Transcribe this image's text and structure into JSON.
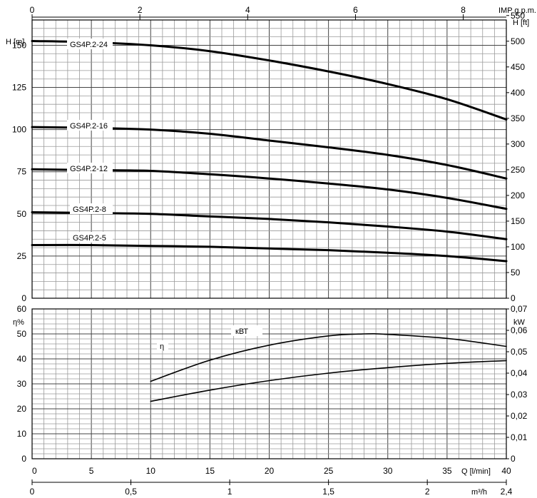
{
  "chart_data": [
    {
      "type": "line",
      "title": "",
      "labels": {
        "h_m": "H [m]",
        "h_ft": "H [ft]",
        "imp": "IMP g.p.m."
      },
      "ylim": [
        0,
        165
      ],
      "yticks_m": [
        "0",
        "25",
        "50",
        "75",
        "100",
        "125",
        "150"
      ],
      "yticks_ft": [
        "0",
        "50",
        "100",
        "150",
        "200",
        "250",
        "300",
        "350",
        "400",
        "450",
        "500",
        "550"
      ],
      "imp_ticks": [
        "0",
        "2",
        "4",
        "6",
        "8"
      ],
      "series": [
        {
          "name": "GS4P.2-24",
          "x": [
            0,
            5,
            10,
            15,
            20,
            25,
            30,
            35,
            40
          ],
          "y": [
            152.5,
            151.8,
            150,
            146.5,
            141,
            134.5,
            127,
            118,
            106
          ]
        },
        {
          "name": "GS4P.2-16",
          "x": [
            0,
            5,
            10,
            15,
            20,
            25,
            30,
            35,
            40
          ],
          "y": [
            101.5,
            101,
            100,
            97.5,
            93.5,
            89.5,
            85,
            79,
            71
          ]
        },
        {
          "name": "GS4P.2-12",
          "x": [
            0,
            5,
            10,
            15,
            20,
            25,
            30,
            35,
            40
          ],
          "y": [
            76.5,
            76,
            75.5,
            73.5,
            71,
            68,
            64.5,
            59.5,
            53
          ]
        },
        {
          "name": "GS4P.2-8",
          "x": [
            0,
            5,
            10,
            15,
            20,
            25,
            30,
            35,
            40
          ],
          "y": [
            51,
            50.5,
            50,
            48.5,
            47,
            45,
            42.5,
            39.5,
            35
          ]
        },
        {
          "name": "GS4P.2-5",
          "x": [
            0,
            5,
            10,
            15,
            20,
            25,
            30,
            35,
            40
          ],
          "y": [
            31.5,
            31.5,
            31,
            30.5,
            29.5,
            28.5,
            27,
            25,
            22
          ]
        }
      ]
    },
    {
      "type": "line",
      "title": "",
      "labels": {
        "eta_axis": "η%",
        "kw_axis": "kW",
        "q": "Q [l/min]",
        "m3h": "m³/h"
      },
      "ylim": [
        0,
        60
      ],
      "yticks_eta": [
        "0",
        "10",
        "20",
        "30",
        "40",
        "50",
        "60"
      ],
      "yticks_kw": [
        "0",
        "0,01",
        "0,02",
        "0,03",
        "0,04",
        "0,05",
        "0,06",
        "0,07"
      ],
      "xticks_q": [
        "0",
        "5",
        "10",
        "15",
        "20",
        "25",
        "30",
        "35",
        "40"
      ],
      "xticks_m3h": [
        "0",
        "0,5",
        "1",
        "1,5",
        "2",
        "2,4"
      ],
      "series": [
        {
          "name": "η",
          "x": [
            10,
            15,
            20,
            25,
            28,
            30,
            35,
            40
          ],
          "y": [
            31,
            39.5,
            45.5,
            49.2,
            50,
            49.8,
            48.2,
            45
          ]
        },
        {
          "name": "кВТ",
          "x": [
            10,
            15,
            20,
            25,
            30,
            35,
            40
          ],
          "y": [
            23,
            27.5,
            31.3,
            34.3,
            36.5,
            38.2,
            39.3
          ]
        }
      ]
    }
  ]
}
